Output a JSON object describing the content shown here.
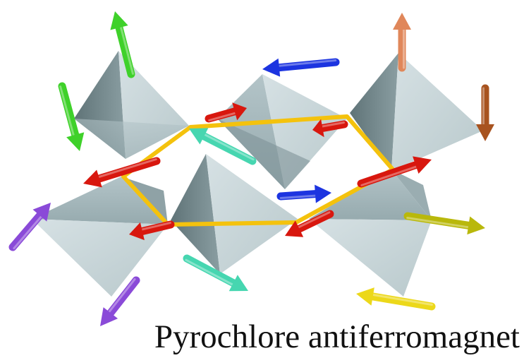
{
  "caption": "Pyrochlore antiferromagnet",
  "colors": {
    "face_light": "#c9d6d9",
    "face_mid": "#a9babe",
    "face_dark": "#6f8387",
    "hexagon": "#f4c20d",
    "spins": {
      "green": "#3fd12a",
      "orange": "#e0875a",
      "brown": "#a8531f",
      "blue": "#1c34e0",
      "red": "#d8170e",
      "dark_red": "#a4120c",
      "mint": "#46d6b0",
      "purple": "#8a4ad8",
      "olive": "#b9b80b",
      "yellow": "#ecd81a"
    }
  },
  "icons": [
    "spin-arrow-icon"
  ]
}
